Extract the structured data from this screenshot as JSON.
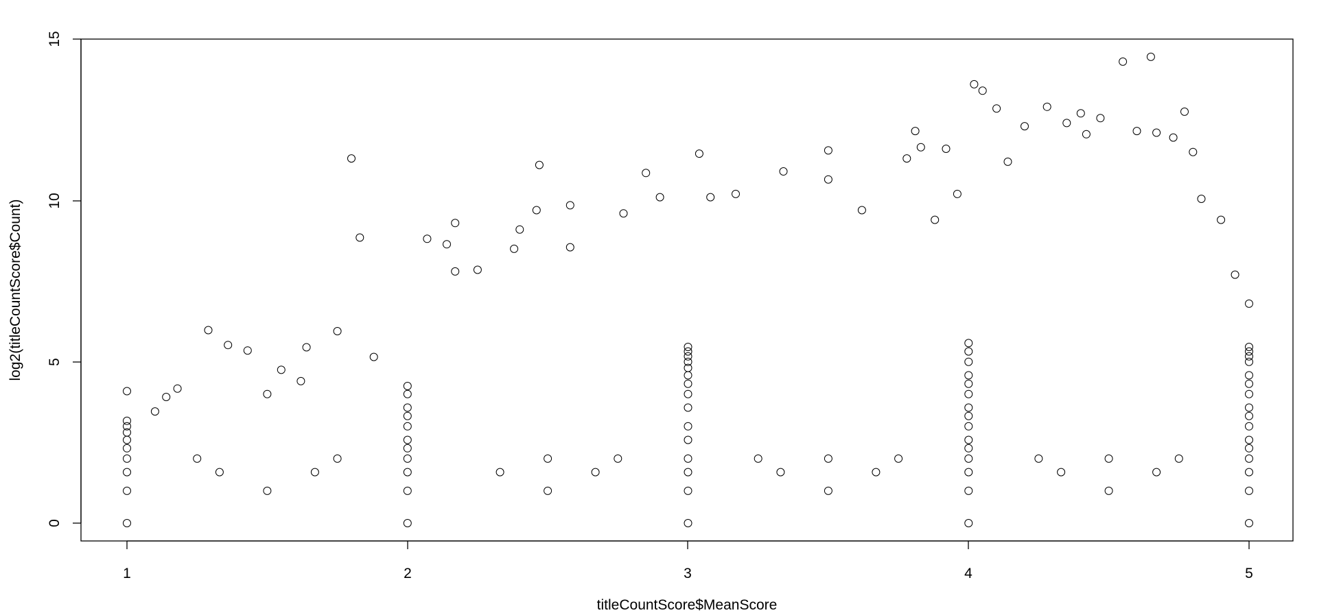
{
  "chart_data": {
    "type": "scatter",
    "title": "",
    "xlabel": "titleCountScore$MeanScore",
    "ylabel": "log2(titleCountScore$Count)",
    "xlim": [
      0.85,
      5.17
    ],
    "ylim": [
      -0.6,
      15
    ],
    "x_ticks": [
      "1",
      "2",
      "3",
      "4",
      "5"
    ],
    "y_ticks": [
      "0",
      "5",
      "10",
      "15"
    ],
    "x_tick_values": [
      1,
      2,
      3,
      4,
      5
    ],
    "y_tick_values": [
      0,
      5,
      10,
      15
    ],
    "marker": "open-circle",
    "grid": false,
    "legend": "none",
    "series": [
      {
        "points": [
          [
            1,
            0
          ],
          [
            1,
            1
          ],
          [
            1,
            1.58
          ],
          [
            1,
            2
          ],
          [
            1,
            2.32
          ],
          [
            1,
            2.58
          ],
          [
            1,
            2.81
          ],
          [
            1,
            3
          ],
          [
            1,
            3.17
          ],
          [
            1,
            4.09
          ],
          [
            1.1,
            3.46
          ],
          [
            1.14,
            3.91
          ],
          [
            1.18,
            4.17
          ],
          [
            1.25,
            2
          ],
          [
            1.29,
            5.98
          ],
          [
            1.33,
            1.58
          ],
          [
            1.36,
            5.52
          ],
          [
            1.43,
            5.35
          ],
          [
            1.5,
            1
          ],
          [
            1.5,
            4
          ],
          [
            1.55,
            4.75
          ],
          [
            1.62,
            4.4
          ],
          [
            1.64,
            5.45
          ],
          [
            1.67,
            1.58
          ],
          [
            1.75,
            2
          ],
          [
            1.75,
            5.95
          ],
          [
            1.8,
            11.3
          ],
          [
            1.83,
            8.85
          ],
          [
            1.88,
            5.15
          ],
          [
            2,
            0
          ],
          [
            2,
            1
          ],
          [
            2,
            1.58
          ],
          [
            2,
            2
          ],
          [
            2,
            2.32
          ],
          [
            2,
            2.58
          ],
          [
            2,
            3
          ],
          [
            2,
            3.32
          ],
          [
            2,
            3.58
          ],
          [
            2,
            4
          ],
          [
            2,
            4.25
          ],
          [
            2.07,
            8.81
          ],
          [
            2.14,
            8.64
          ],
          [
            2.17,
            9.3
          ],
          [
            2.17,
            7.8
          ],
          [
            2.25,
            7.85
          ],
          [
            2.33,
            1.58
          ],
          [
            2.38,
            8.5
          ],
          [
            2.4,
            9.1
          ],
          [
            2.46,
            9.7
          ],
          [
            2.47,
            11.1
          ],
          [
            2.5,
            1
          ],
          [
            2.5,
            2
          ],
          [
            2.58,
            9.85
          ],
          [
            2.58,
            8.55
          ],
          [
            2.67,
            1.58
          ],
          [
            2.75,
            2
          ],
          [
            2.77,
            9.6
          ],
          [
            2.85,
            10.85
          ],
          [
            2.9,
            10.1
          ],
          [
            3,
            0
          ],
          [
            3,
            1
          ],
          [
            3,
            1.58
          ],
          [
            3,
            2
          ],
          [
            3,
            2.58
          ],
          [
            3,
            3
          ],
          [
            3,
            3.58
          ],
          [
            3,
            4
          ],
          [
            3,
            4.32
          ],
          [
            3,
            4.58
          ],
          [
            3,
            4.81
          ],
          [
            3,
            5
          ],
          [
            3,
            5.17
          ],
          [
            3,
            5.32
          ],
          [
            3,
            5.46
          ],
          [
            3.04,
            11.45
          ],
          [
            3.08,
            10.1
          ],
          [
            3.17,
            10.2
          ],
          [
            3.25,
            2
          ],
          [
            3.33,
            1.58
          ],
          [
            3.34,
            10.9
          ],
          [
            3.5,
            1
          ],
          [
            3.5,
            2
          ],
          [
            3.5,
            11.55
          ],
          [
            3.5,
            10.65
          ],
          [
            3.62,
            9.7
          ],
          [
            3.67,
            1.58
          ],
          [
            3.75,
            2
          ],
          [
            3.78,
            11.3
          ],
          [
            3.81,
            12.15
          ],
          [
            3.83,
            11.65
          ],
          [
            3.88,
            9.4
          ],
          [
            3.92,
            11.6
          ],
          [
            3.96,
            10.2
          ],
          [
            4,
            0
          ],
          [
            4,
            1
          ],
          [
            4,
            1.58
          ],
          [
            4,
            2
          ],
          [
            4,
            2.32
          ],
          [
            4,
            2.58
          ],
          [
            4,
            3
          ],
          [
            4,
            3.32
          ],
          [
            4,
            3.58
          ],
          [
            4,
            4
          ],
          [
            4,
            4.32
          ],
          [
            4,
            4.58
          ],
          [
            4,
            5
          ],
          [
            4,
            5.32
          ],
          [
            4,
            5.58
          ],
          [
            4.02,
            13.6
          ],
          [
            4.05,
            13.4
          ],
          [
            4.1,
            12.85
          ],
          [
            4.14,
            11.2
          ],
          [
            4.2,
            12.3
          ],
          [
            4.25,
            2
          ],
          [
            4.28,
            12.9
          ],
          [
            4.33,
            1.58
          ],
          [
            4.35,
            12.4
          ],
          [
            4.4,
            12.7
          ],
          [
            4.42,
            12.05
          ],
          [
            4.47,
            12.55
          ],
          [
            4.5,
            1
          ],
          [
            4.5,
            2
          ],
          [
            4.55,
            14.3
          ],
          [
            4.6,
            12.15
          ],
          [
            4.65,
            14.45
          ],
          [
            4.67,
            1.58
          ],
          [
            4.67,
            12.1
          ],
          [
            4.73,
            11.95
          ],
          [
            4.77,
            12.75
          ],
          [
            4.75,
            2
          ],
          [
            4.8,
            11.5
          ],
          [
            4.83,
            10.05
          ],
          [
            4.9,
            9.4
          ],
          [
            5,
            0
          ],
          [
            5,
            1
          ],
          [
            5,
            1.58
          ],
          [
            5,
            2
          ],
          [
            5,
            2.32
          ],
          [
            5,
            2.58
          ],
          [
            5,
            3
          ],
          [
            5,
            3.32
          ],
          [
            5,
            3.58
          ],
          [
            5,
            4
          ],
          [
            5,
            4.32
          ],
          [
            5,
            4.58
          ],
          [
            5,
            5
          ],
          [
            5,
            5.17
          ],
          [
            5,
            5.32
          ],
          [
            5,
            5.46
          ],
          [
            5,
            6.8
          ],
          [
            4.95,
            7.7
          ]
        ]
      }
    ]
  }
}
